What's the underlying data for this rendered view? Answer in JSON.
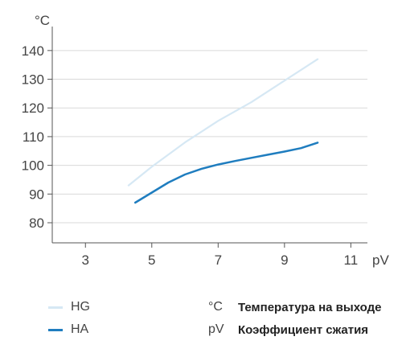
{
  "chart_data": {
    "type": "line",
    "title": "",
    "xlabel": "pV",
    "ylabel": "°C",
    "xlim": [
      2,
      11.5
    ],
    "ylim": [
      73,
      145
    ],
    "xticks": [
      3,
      5,
      7,
      9,
      11
    ],
    "yticks": [
      80,
      90,
      100,
      110,
      120,
      130,
      140
    ],
    "grid": "horizontal",
    "legend_position": "bottom-left",
    "series": [
      {
        "name": "HG",
        "color": "#d6e8f4",
        "points": [
          [
            4.3,
            93
          ],
          [
            5.0,
            99.5
          ],
          [
            6.0,
            108
          ],
          [
            7.0,
            115.5
          ],
          [
            8.0,
            122
          ],
          [
            9.0,
            129.5
          ],
          [
            10.0,
            137
          ]
        ]
      },
      {
        "name": "HA",
        "color": "#1f7dbf",
        "points": [
          [
            4.5,
            87
          ],
          [
            5.0,
            90.5
          ],
          [
            5.5,
            94
          ],
          [
            6.0,
            96.8
          ],
          [
            6.5,
            98.8
          ],
          [
            7.0,
            100.3
          ],
          [
            7.5,
            101.5
          ],
          [
            8.0,
            102.6
          ],
          [
            8.5,
            103.7
          ],
          [
            9.0,
            104.8
          ],
          [
            9.5,
            106
          ],
          [
            10.0,
            107.9
          ]
        ]
      }
    ]
  },
  "legend": {
    "items": [
      {
        "label": "HG",
        "color": "#d6e8f4"
      },
      {
        "label": "HA",
        "color": "#1f7dbf"
      }
    ]
  },
  "notes": {
    "temp_symbol": "°C",
    "temp_text": "Температура на выходе",
    "pv_symbol": "pV",
    "pv_text": "Коэффициент сжатия"
  }
}
